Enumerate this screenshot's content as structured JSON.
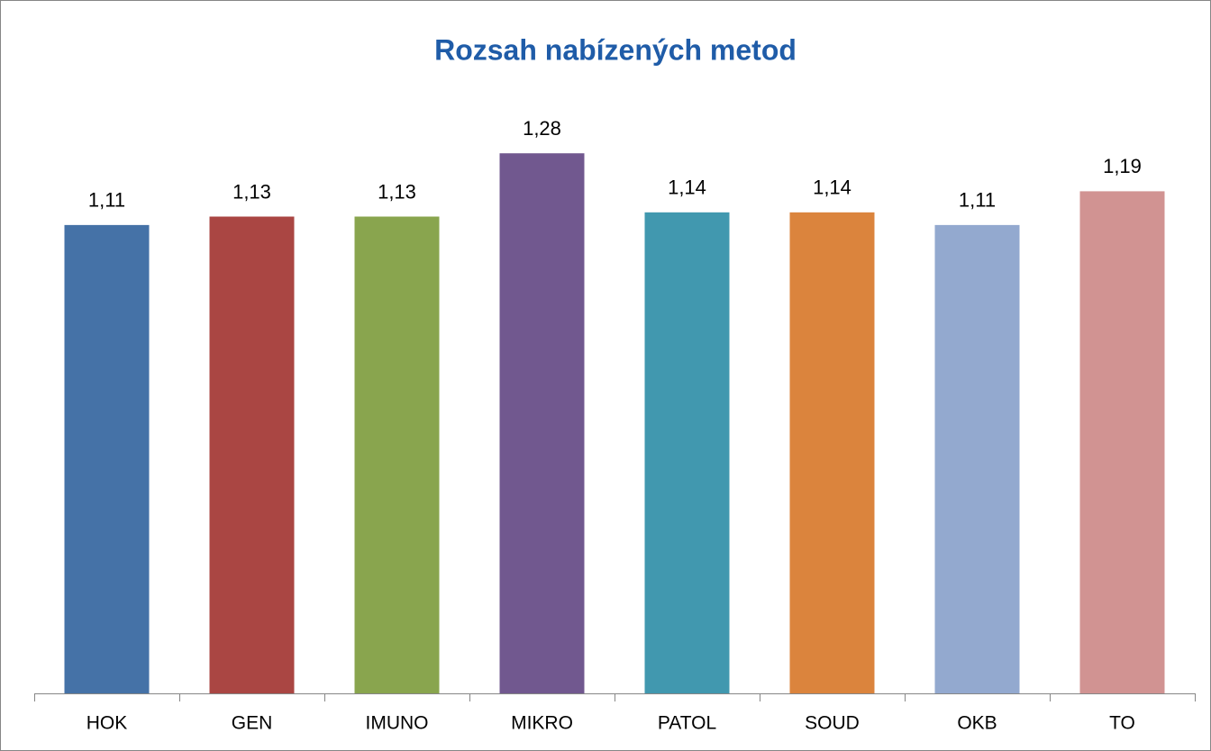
{
  "chart_data": {
    "type": "bar",
    "title": "Rozsah nabízených metod",
    "categories": [
      "HOK",
      "GEN",
      "IMUNO",
      "MIKRO",
      "PATOL",
      "SOUD",
      "OKB",
      "TO"
    ],
    "values": [
      1.11,
      1.13,
      1.13,
      1.28,
      1.14,
      1.14,
      1.11,
      1.19
    ],
    "value_labels": [
      "1,11",
      "1,13",
      "1,13",
      "1,28",
      "1,14",
      "1,14",
      "1,11",
      "1,19"
    ],
    "colors": [
      "#4572a7",
      "#aa4643",
      "#89a54e",
      "#71588f",
      "#4198af",
      "#db843d",
      "#93a9cf",
      "#d19392"
    ],
    "ylim": [
      0,
      1.4
    ]
  }
}
